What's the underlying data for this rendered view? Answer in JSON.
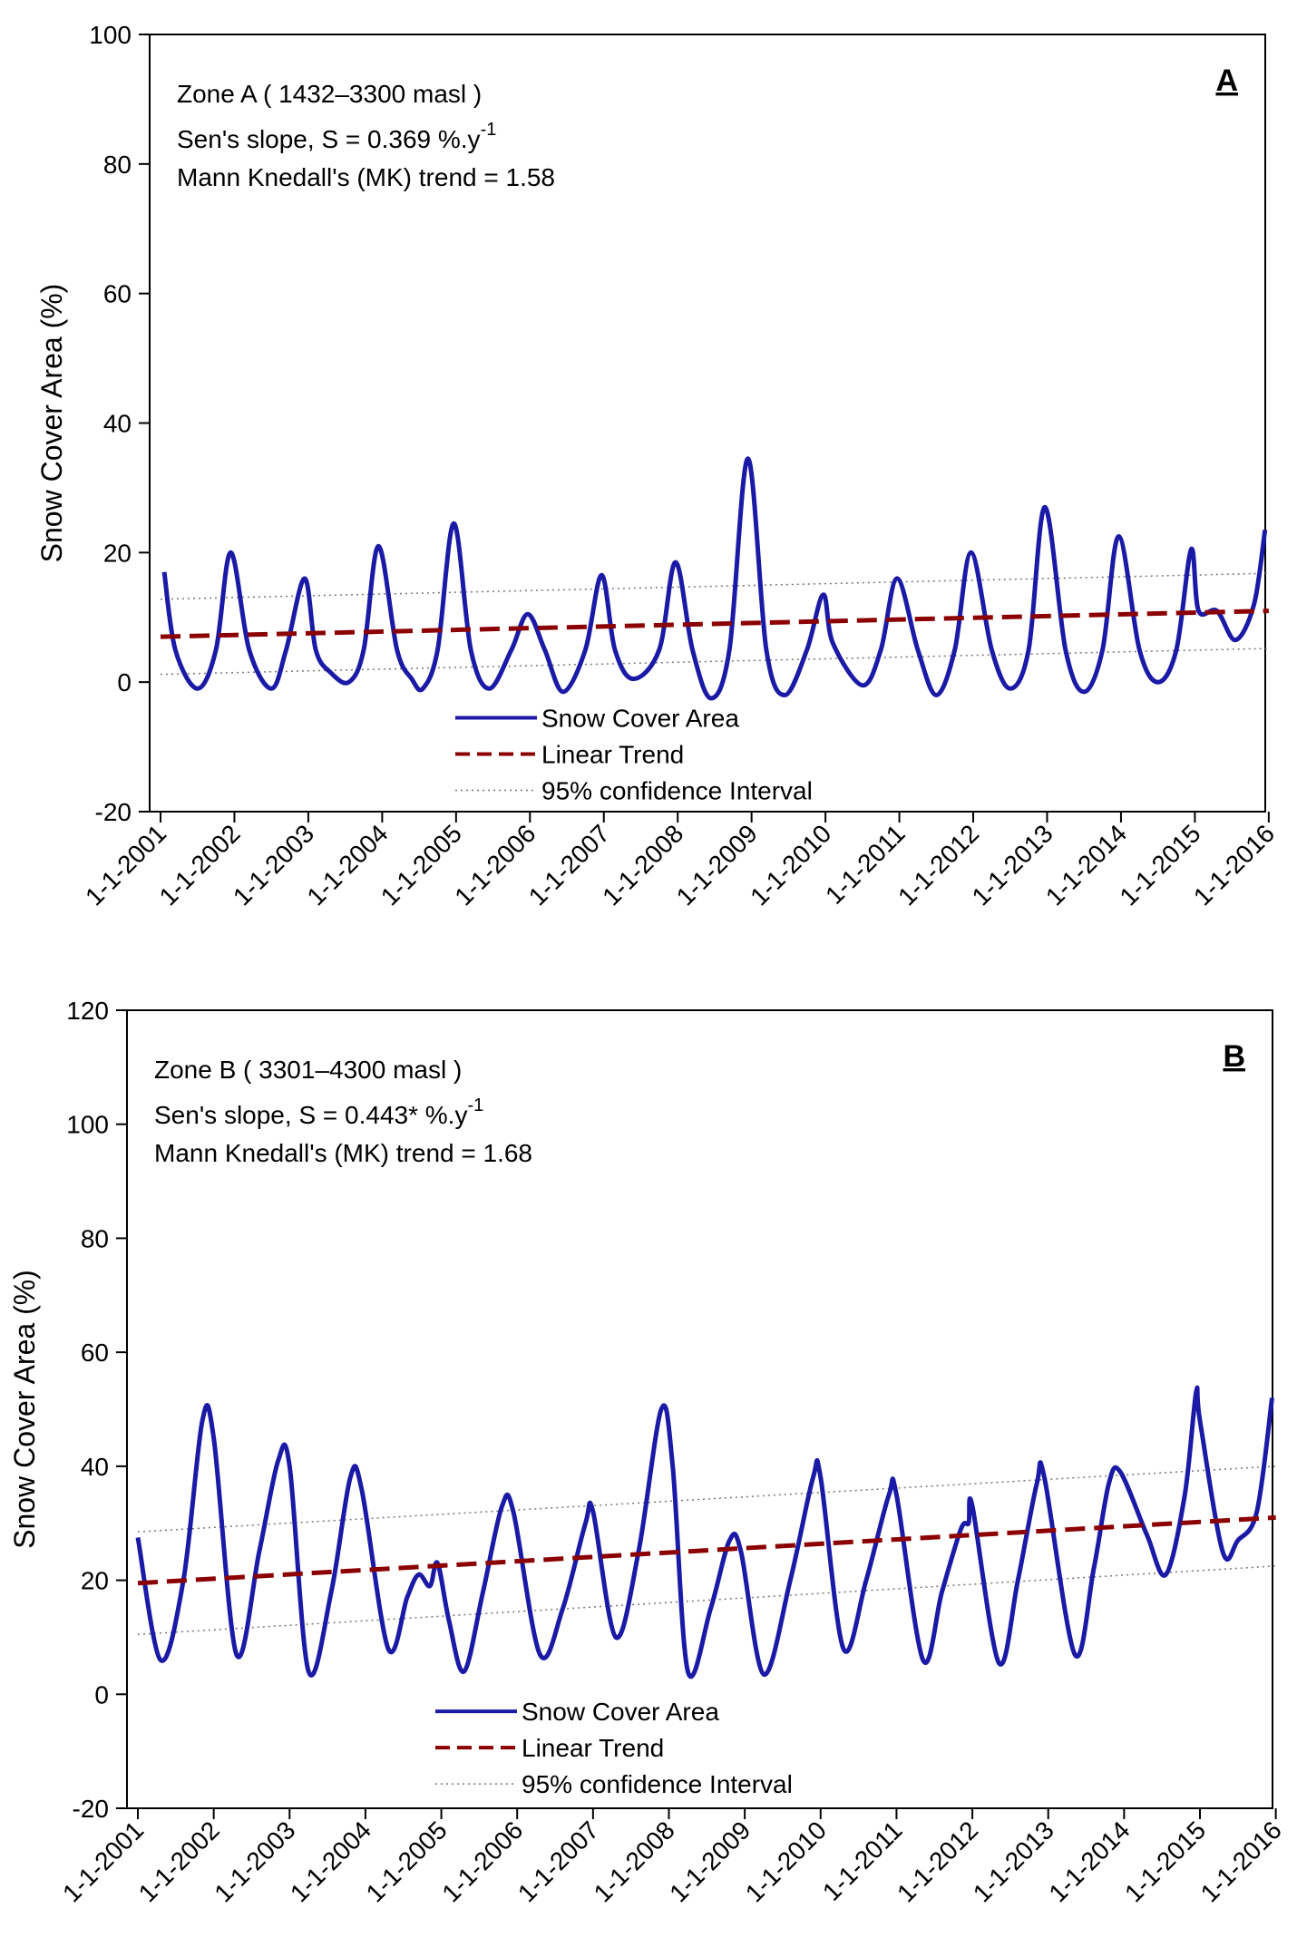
{
  "chart_data": [
    {
      "type": "line",
      "panel_label": "A",
      "zone_text": "Zone A ( 1432–3300 masl )",
      "slope_text": "Sen's slope, S = 0.369 %.y",
      "slope_exp": "-1",
      "mk_text": "Mann Knedall's (MK) trend = 1.58",
      "ylabel": "Snow Cover Area (%)",
      "ylim": [
        -20,
        100
      ],
      "yticks": [
        -20,
        0,
        20,
        40,
        60,
        80,
        100
      ],
      "xlim": [
        2001,
        2016.1
      ],
      "xticks": [
        {
          "v": 2001,
          "label": "1-1-2001"
        },
        {
          "v": 2002,
          "label": "1-1-2002"
        },
        {
          "v": 2003,
          "label": "1-1-2003"
        },
        {
          "v": 2004,
          "label": "1-1-2004"
        },
        {
          "v": 2005,
          "label": "1-1-2005"
        },
        {
          "v": 2006,
          "label": "1-1-2006"
        },
        {
          "v": 2007,
          "label": "1-1-2007"
        },
        {
          "v": 2008,
          "label": "1-1-2008"
        },
        {
          "v": 2009,
          "label": "1-1-2009"
        },
        {
          "v": 2010,
          "label": "1-1-2010"
        },
        {
          "v": 2011,
          "label": "1-1-2011"
        },
        {
          "v": 2012,
          "label": "1-1-2012"
        },
        {
          "v": 2013,
          "label": "1-1-2013"
        },
        {
          "v": 2014,
          "label": "1-1-2014"
        },
        {
          "v": 2015,
          "label": "1-1-2015"
        },
        {
          "v": 2016,
          "label": "1-1-2016"
        }
      ],
      "legend": [
        "Snow Cover Area",
        "Linear Trend",
        "95% confidence Interval"
      ],
      "colors": {
        "sca": "#1a1aa6",
        "trend": "#8b0000",
        "ci": "#777777"
      },
      "series": [
        {
          "name": "Snow Cover Area",
          "x": [
            2001.05,
            2001.2,
            2001.5,
            2001.75,
            2001.95,
            2002.2,
            2002.5,
            2002.7,
            2002.95,
            2003.1,
            2003.3,
            2003.55,
            2003.75,
            2003.95,
            2004.2,
            2004.4,
            2004.55,
            2004.75,
            2004.97,
            2005.2,
            2005.45,
            2005.75,
            2005.97,
            2006.2,
            2006.45,
            2006.75,
            2006.97,
            2007.15,
            2007.4,
            2007.75,
            2007.97,
            2008.2,
            2008.45,
            2008.7,
            2008.95,
            2009.2,
            2009.45,
            2009.75,
            2009.97,
            2010.1,
            2010.5,
            2010.75,
            2010.97,
            2011.25,
            2011.5,
            2011.75,
            2011.97,
            2012.25,
            2012.5,
            2012.75,
            2012.97,
            2013.25,
            2013.5,
            2013.75,
            2013.97,
            2014.25,
            2014.5,
            2014.75,
            2014.95,
            2015.05,
            2015.3,
            2015.55,
            2015.8,
            2015.95
          ],
          "y": [
            17,
            5,
            -1,
            5,
            20,
            5,
            -1,
            5,
            16,
            5,
            1.5,
            0,
            5,
            21,
            5,
            0.5,
            -1,
            5,
            24.5,
            5,
            -1,
            5,
            10.5,
            5,
            -1.5,
            5,
            16.5,
            5,
            0.5,
            5,
            18.5,
            5,
            -2.5,
            5,
            34.5,
            5,
            -2,
            5,
            13.5,
            6,
            -0.5,
            5,
            16,
            5,
            -2,
            5,
            20,
            5,
            -1,
            5,
            27,
            5,
            -1.5,
            5,
            22.5,
            5,
            0,
            5,
            20.5,
            11,
            11,
            6.5,
            12,
            23.5
          ]
        },
        {
          "name": "Linear Trend",
          "x": [
            2001,
            2016
          ],
          "y": [
            7,
            11
          ]
        },
        {
          "name": "95% confidence Interval (upper)",
          "x": [
            2001,
            2016
          ],
          "y": [
            12.8,
            16.8
          ]
        },
        {
          "name": "95% confidence Interval (lower)",
          "x": [
            2001,
            2016
          ],
          "y": [
            1.2,
            5.2
          ]
        }
      ]
    },
    {
      "type": "line",
      "panel_label": "B",
      "zone_text": "Zone B ( 3301–4300 masl )",
      "slope_text": "Sen's slope, S = 0.443* %.y",
      "slope_exp": "-1",
      "mk_text": "Mann Knedall's (MK) trend = 1.68",
      "ylabel": "Snow Cover Area (%)",
      "ylim": [
        -20,
        120
      ],
      "yticks": [
        -20,
        0,
        20,
        40,
        60,
        80,
        100,
        120
      ],
      "xlim": [
        2001,
        2016.1
      ],
      "xticks": [
        {
          "v": 2001,
          "label": "1-1-2001"
        },
        {
          "v": 2002,
          "label": "1-1-2002"
        },
        {
          "v": 2003,
          "label": "1-1-2003"
        },
        {
          "v": 2004,
          "label": "1-1-2004"
        },
        {
          "v": 2005,
          "label": "1-1-2005"
        },
        {
          "v": 2006,
          "label": "1-1-2006"
        },
        {
          "v": 2007,
          "label": "1-1-2007"
        },
        {
          "v": 2008,
          "label": "1-1-2008"
        },
        {
          "v": 2009,
          "label": "1-1-2009"
        },
        {
          "v": 2010,
          "label": "1-1-2010"
        },
        {
          "v": 2011,
          "label": "1-1-2011"
        },
        {
          "v": 2012,
          "label": "1-1-2012"
        },
        {
          "v": 2013,
          "label": "1-1-2013"
        },
        {
          "v": 2014,
          "label": "1-1-2014"
        },
        {
          "v": 2015,
          "label": "1-1-2015"
        },
        {
          "v": 2016,
          "label": "1-1-2016"
        }
      ],
      "legend": [
        "Snow Cover Area",
        "Linear Trend",
        "95% confidence Interval"
      ],
      "colors": {
        "sca": "#1a1aa6",
        "trend": "#8b0000",
        "ci": "#777777"
      },
      "series": [
        {
          "name": "Snow Cover Area",
          "x": [
            2001.0,
            2001.3,
            2001.6,
            2001.85,
            2002.0,
            2002.3,
            2002.6,
            2002.85,
            2003.0,
            2003.25,
            2003.55,
            2003.8,
            2003.95,
            2004.3,
            2004.55,
            2004.7,
            2004.85,
            2004.95,
            2005.1,
            2005.3,
            2005.55,
            2005.8,
            2005.95,
            2006.3,
            2006.6,
            2006.9,
            2007.0,
            2007.3,
            2007.6,
            2007.9,
            2008.05,
            2008.25,
            2008.55,
            2008.8,
            2008.95,
            2009.25,
            2009.6,
            2009.9,
            2010.0,
            2010.3,
            2010.6,
            2010.9,
            2011.0,
            2011.35,
            2011.6,
            2011.85,
            2011.95,
            2012.0,
            2012.35,
            2012.6,
            2012.85,
            2012.95,
            2013.35,
            2013.6,
            2013.8,
            2013.95,
            2014.3,
            2014.55,
            2014.8,
            2014.95,
            2015.0,
            2015.3,
            2015.5,
            2015.75,
            2015.95
          ],
          "y": [
            27.5,
            6,
            20,
            48,
            45,
            7,
            25,
            41,
            40,
            4,
            18,
            38,
            36,
            8,
            17,
            21,
            19,
            23,
            13,
            4,
            18,
            33,
            32,
            7,
            15,
            30,
            32,
            10,
            25,
            50,
            40,
            4,
            15,
            27,
            25,
            3.5,
            20,
            38,
            38,
            8,
            20,
            35,
            35,
            6,
            18,
            29,
            30,
            33,
            5.5,
            20,
            37,
            38,
            7,
            22,
            37,
            39,
            28,
            21,
            35,
            53,
            48,
            25,
            27,
            32,
            52
          ]
        },
        {
          "name": "Linear Trend",
          "x": [
            2001,
            2016
          ],
          "y": [
            19.5,
            31
          ]
        },
        {
          "name": "95% confidence Interval (upper)",
          "x": [
            2001,
            2016
          ],
          "y": [
            28.5,
            40
          ]
        },
        {
          "name": "95% confidence Interval (lower)",
          "x": [
            2001,
            2016
          ],
          "y": [
            10.5,
            22.5
          ]
        }
      ]
    }
  ]
}
